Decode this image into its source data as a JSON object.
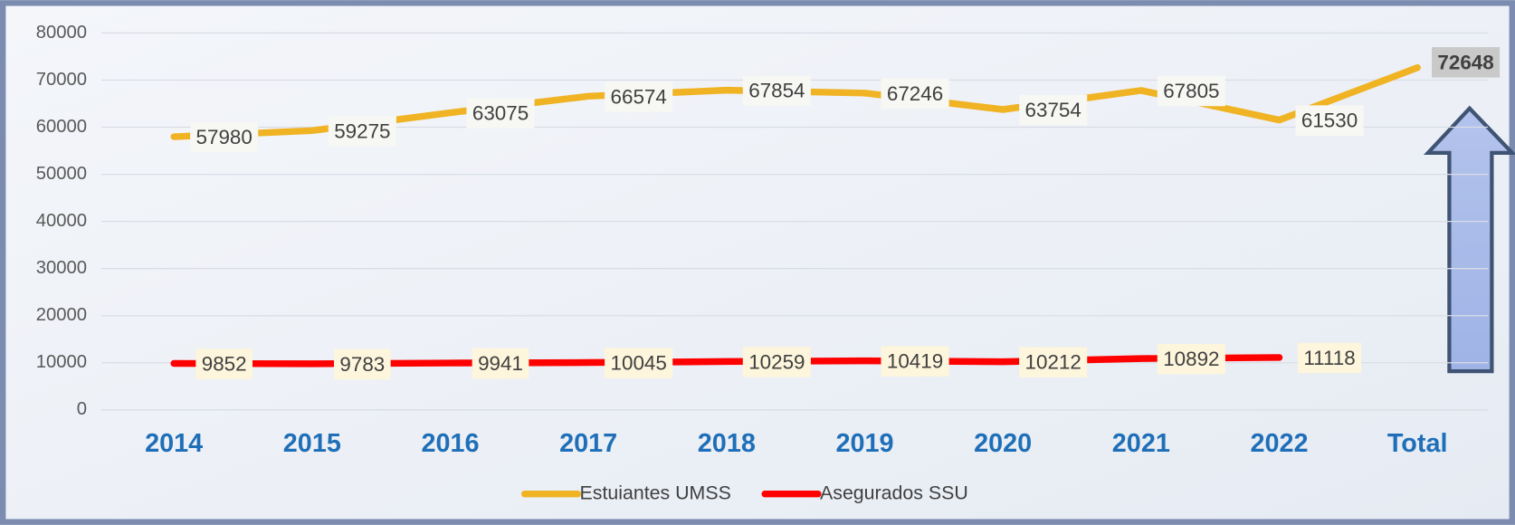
{
  "chart_data": {
    "type": "line",
    "categories": [
      "2014",
      "2015",
      "2016",
      "2017",
      "2018",
      "2019",
      "2020",
      "2021",
      "2022",
      "Total"
    ],
    "series": [
      {
        "name": "Estuiantes UMSS",
        "color": "#f0b323",
        "values": [
          57980,
          59275,
          63075,
          66574,
          67854,
          67246,
          63754,
          67805,
          61530,
          72648
        ]
      },
      {
        "name": "Asegurados SSU",
        "color": "#ff0000",
        "values": [
          9852,
          9783,
          9941,
          10045,
          10259,
          10419,
          10212,
          10892,
          11118,
          null
        ]
      }
    ],
    "ylim": [
      0,
      80000
    ],
    "yticks": [
      0,
      10000,
      20000,
      30000,
      40000,
      50000,
      60000,
      70000,
      80000
    ],
    "grid": true,
    "legend": "bottom"
  }
}
